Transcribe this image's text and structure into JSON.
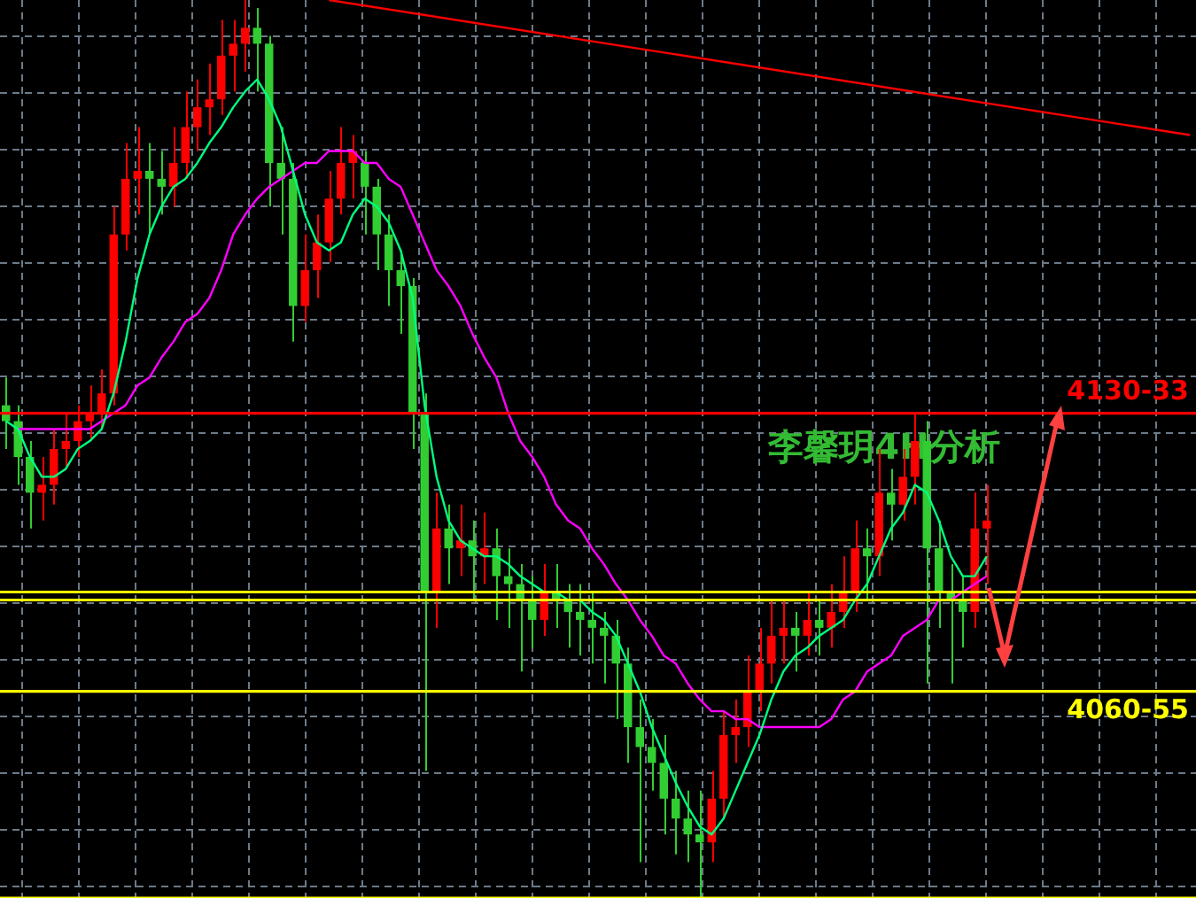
{
  "chart_data": {
    "type": "candlestick",
    "grid": true,
    "legend": false,
    "tick_labels": false,
    "ylim": [
      4008,
      4234
    ],
    "annotations": [
      "李馨玥4H分析"
    ],
    "categories": [
      null,
      null,
      null,
      null,
      null,
      null,
      null,
      null,
      null,
      null,
      null,
      null,
      null,
      null,
      null,
      null,
      null,
      null,
      null,
      null,
      null,
      null,
      null,
      null,
      null,
      null,
      null,
      null,
      null,
      null,
      null,
      null,
      null,
      null,
      null,
      null,
      null,
      null,
      null,
      null,
      null,
      null,
      null,
      null,
      null,
      null,
      null,
      null,
      null,
      null,
      null,
      null,
      null,
      null,
      null,
      null,
      null,
      null,
      null,
      null,
      null,
      null,
      null,
      null,
      null,
      null,
      null,
      null,
      null,
      null,
      null,
      null,
      null,
      null,
      null,
      null,
      null,
      null,
      null,
      null,
      null,
      null,
      null,
      null,
      null,
      null,
      null,
      null,
      null,
      null,
      null,
      null,
      null,
      null,
      null,
      null,
      null,
      null,
      null,
      null
    ],
    "ohlc": [
      [
        4132,
        4139,
        4121,
        4128
      ],
      [
        4128,
        4132,
        4112,
        4119
      ],
      [
        4119,
        4123,
        4101,
        4110
      ],
      [
        4110,
        4119,
        4103,
        4112
      ],
      [
        4112,
        4126,
        4107,
        4121
      ],
      [
        4121,
        4130,
        4116,
        4123
      ],
      [
        4123,
        4132,
        4119,
        4128
      ],
      [
        4128,
        4137,
        4123,
        4130
      ],
      [
        4130,
        4141,
        4126,
        4135
      ],
      [
        4135,
        4182,
        4132,
        4175
      ],
      [
        4175,
        4198,
        4171,
        4189
      ],
      [
        4189,
        4202,
        4180,
        4191
      ],
      [
        4191,
        4198,
        4175,
        4189
      ],
      [
        4189,
        4196,
        4180,
        4187
      ],
      [
        4187,
        4202,
        4182,
        4193
      ],
      [
        4193,
        4211,
        4189,
        4202
      ],
      [
        4202,
        4214,
        4196,
        4207
      ],
      [
        4207,
        4218,
        4200,
        4209
      ],
      [
        4209,
        4229,
        4205,
        4220
      ],
      [
        4220,
        4229,
        4211,
        4223
      ],
      [
        4223,
        4234,
        4216,
        4227
      ],
      [
        4227,
        4232,
        4211,
        4223
      ],
      [
        4223,
        4225,
        4182,
        4193
      ],
      [
        4193,
        4202,
        4175,
        4189
      ],
      [
        4189,
        4193,
        4148,
        4157
      ],
      [
        4157,
        4175,
        4153,
        4166
      ],
      [
        4166,
        4180,
        4159,
        4173
      ],
      [
        4173,
        4191,
        4168,
        4184
      ],
      [
        4184,
        4202,
        4180,
        4193
      ],
      [
        4193,
        4200,
        4184,
        4196
      ],
      [
        4193,
        4196,
        4175,
        4187
      ],
      [
        4187,
        4189,
        4166,
        4175
      ],
      [
        4175,
        4180,
        4157,
        4166
      ],
      [
        4166,
        4171,
        4150,
        4162
      ],
      [
        4162,
        4164,
        4121,
        4130
      ],
      [
        4130,
        4135,
        4040,
        4085
      ],
      [
        4085,
        4110,
        4076,
        4101
      ],
      [
        4101,
        4107,
        4087,
        4096
      ],
      [
        4096,
        4107,
        4089,
        4098
      ],
      [
        4098,
        4103,
        4083,
        4094
      ],
      [
        4094,
        4105,
        4087,
        4096
      ],
      [
        4096,
        4101,
        4078,
        4089
      ],
      [
        4089,
        4096,
        4076,
        4087
      ],
      [
        4087,
        4092,
        4065,
        4083
      ],
      [
        4083,
        4089,
        4071,
        4078
      ],
      [
        4078,
        4092,
        4074,
        4085
      ],
      [
        4085,
        4092,
        4076,
        4083
      ],
      [
        4083,
        4087,
        4071,
        4080
      ],
      [
        4080,
        4087,
        4069,
        4078
      ],
      [
        4078,
        4085,
        4067,
        4076
      ],
      [
        4076,
        4080,
        4062,
        4074
      ],
      [
        4074,
        4078,
        4053,
        4067
      ],
      [
        4067,
        4071,
        4042,
        4051
      ],
      [
        4051,
        4058,
        4017,
        4046
      ],
      [
        4046,
        4053,
        4035,
        4042
      ],
      [
        4042,
        4049,
        4024,
        4033
      ],
      [
        4033,
        4040,
        4019,
        4028
      ],
      [
        4028,
        4035,
        4017,
        4024
      ],
      [
        4024,
        4035,
        4008,
        4022
      ],
      [
        4022,
        4040,
        4017,
        4033
      ],
      [
        4033,
        4055,
        4028,
        4049
      ],
      [
        4049,
        4058,
        4042,
        4051
      ],
      [
        4051,
        4069,
        4046,
        4060
      ],
      [
        4060,
        4076,
        4055,
        4067
      ],
      [
        4067,
        4083,
        4062,
        4074
      ],
      [
        4074,
        4083,
        4067,
        4076
      ],
      [
        4076,
        4080,
        4065,
        4074
      ],
      [
        4074,
        4085,
        4069,
        4078
      ],
      [
        4078,
        4083,
        4069,
        4076
      ],
      [
        4076,
        4087,
        4071,
        4080
      ],
      [
        4080,
        4094,
        4076,
        4085
      ],
      [
        4085,
        4103,
        4080,
        4096
      ],
      [
        4096,
        4101,
        4083,
        4094
      ],
      [
        4094,
        4121,
        4089,
        4110
      ],
      [
        4110,
        4116,
        4098,
        4107
      ],
      [
        4107,
        4121,
        4103,
        4114
      ],
      [
        4114,
        4130,
        4107,
        4123
      ],
      [
        4123,
        4128,
        4062,
        4096
      ],
      [
        4096,
        4103,
        4076,
        4085
      ],
      [
        4085,
        4092,
        4062,
        4083
      ],
      [
        4083,
        4089,
        4071,
        4080
      ],
      [
        4080,
        4110,
        4076,
        4101
      ],
      [
        4101,
        4112,
        4087,
        4103
      ],
      null,
      null,
      null,
      null,
      null,
      null,
      null,
      null,
      null,
      null,
      null,
      null,
      null,
      null,
      null,
      null,
      null
    ],
    "colors": [
      "#32cd32",
      "#32cd32",
      "#32cd32",
      "#ff0000",
      "#ff0000",
      "#ff0000",
      "#ff0000",
      "#ff0000",
      "#ff0000",
      "#ff0000",
      "#ff0000",
      "#ff0000",
      "#32cd32",
      "#32cd32",
      "#ff0000",
      "#ff0000",
      "#ff0000",
      "#ff0000",
      "#ff0000",
      "#ff0000",
      "#ff0000",
      "#32cd32",
      "#32cd32",
      "#32cd32",
      "#32cd32",
      "#ff0000",
      "#ff0000",
      "#ff0000",
      "#ff0000",
      "#ff0000",
      "#32cd32",
      "#32cd32",
      "#32cd32",
      "#32cd32",
      "#32cd32",
      "#32cd32",
      "#ff0000",
      "#32cd32",
      "#ff0000",
      "#32cd32",
      "#ff0000",
      "#32cd32",
      "#32cd32",
      "#32cd32",
      "#32cd32",
      "#ff0000",
      "#32cd32",
      "#32cd32",
      "#32cd32",
      "#32cd32",
      "#32cd32",
      "#32cd32",
      "#32cd32",
      "#32cd32",
      "#32cd32",
      "#32cd32",
      "#32cd32",
      "#32cd32",
      "#32cd32",
      "#ff0000",
      "#ff0000",
      "#ff0000",
      "#ff0000",
      "#ff0000",
      "#ff0000",
      "#ff0000",
      "#32cd32",
      "#ff0000",
      "#32cd32",
      "#ff0000",
      "#ff0000",
      "#ff0000",
      "#32cd32",
      "#ff0000",
      "#32cd32",
      "#ff0000",
      "#ff0000",
      "#32cd32",
      "#32cd32",
      "#32cd32",
      "#32cd32",
      "#ff0000",
      "#ff0000",
      null,
      null,
      null,
      null,
      null,
      null,
      null,
      null,
      null,
      null,
      null,
      null,
      null,
      null,
      null,
      null,
      null
    ],
    "series": [
      {
        "type": "line",
        "color": "#00ff7f",
        "values": [
          4128,
          4126,
          4119,
          4114,
          4114,
          4116,
          4121,
          4123,
          4126,
          4135,
          4148,
          4164,
          4175,
          4182,
          4187,
          4189,
          4193,
          4198,
          4202,
          4207,
          4211,
          4214,
          4209,
          4202,
          4191,
          4180,
          4173,
          4171,
          4173,
          4180,
          4184,
          4182,
          4178,
          4171,
          4159,
          4132,
          4114,
          4103,
          4098,
          4096,
          4094,
          4094,
          4092,
          4089,
          4087,
          4085,
          4085,
          4083,
          4083,
          4080,
          4078,
          4074,
          4067,
          4060,
          4051,
          4044,
          4037,
          4031,
          4026,
          4024,
          4028,
          4035,
          4042,
          4049,
          4058,
          4065,
          4069,
          4071,
          4074,
          4076,
          4078,
          4083,
          4087,
          4094,
          4101,
          4105,
          4112,
          4110,
          4103,
          4094,
          4089,
          4089,
          4094,
          null,
          null,
          null,
          null,
          null,
          null,
          null,
          null,
          null,
          null,
          null,
          null,
          null,
          null,
          null,
          null,
          null
        ]
      },
      {
        "type": "line",
        "color": "#ff00ff",
        "values": [
          null,
          4126,
          4126,
          4126,
          4126,
          4126,
          4126,
          4126,
          4128,
          4130,
          4132,
          4137,
          4139,
          4144,
          4148,
          4153,
          4155,
          4159,
          4166,
          4175,
          4180,
          4184,
          4187,
          4189,
          4191,
          4193,
          4193,
          4196,
          4196,
          4196,
          4193,
          4193,
          4189,
          4187,
          4180,
          4173,
          4166,
          4162,
          4157,
          4150,
          4144,
          4139,
          4130,
          4123,
          4119,
          4114,
          4107,
          4103,
          4101,
          4096,
          4092,
          4087,
          4083,
          4078,
          4074,
          4069,
          4067,
          4062,
          4058,
          4055,
          4055,
          4053,
          4053,
          4051,
          4051,
          4051,
          4051,
          4051,
          4051,
          4053,
          4058,
          4060,
          4065,
          4067,
          4069,
          4074,
          4076,
          4078,
          4083,
          4083,
          4085,
          4087,
          4089,
          null,
          null,
          null,
          null,
          null,
          null,
          null,
          null,
          null,
          null,
          null,
          null,
          null,
          null,
          null,
          null,
          null
        ]
      },
      {
        "type": "line",
        "color": "#ff0000",
        "values": [
          null,
          null,
          null,
          null,
          null,
          null,
          null,
          null,
          null,
          null,
          null,
          null,
          null,
          null,
          null,
          null,
          null,
          null,
          null,
          null,
          null,
          null,
          null,
          null,
          null,
          null,
          null,
          4234,
          null,
          null,
          null,
          null,
          null,
          null,
          null,
          null,
          null,
          null,
          null,
          null,
          null,
          null,
          null,
          null,
          null,
          null,
          null,
          null,
          null,
          null,
          null,
          null,
          null,
          null,
          null,
          null,
          null,
          null,
          null,
          null,
          null,
          null,
          null,
          null,
          null,
          null,
          null,
          null,
          null,
          null,
          null,
          null,
          null,
          null,
          null,
          null,
          null,
          null,
          null,
          null,
          null,
          null,
          null,
          null,
          null,
          null,
          null,
          null,
          null,
          null,
          null,
          null,
          null,
          null,
          null,
          null,
          null,
          null,
          null,
          4200
        ]
      }
    ],
    "ref_lines": [
      {
        "axis": "y",
        "value": 4130,
        "label": "4130-33",
        "color": "#ff0000"
      },
      {
        "axis": "y",
        "value": 4085,
        "color": "#ffff00"
      },
      {
        "axis": "y",
        "value": 4083,
        "color": "#ffff00"
      },
      {
        "axis": "y",
        "value": 4060,
        "label": "4060-55",
        "color": "#ffff00"
      },
      {
        "axis": "y",
        "value": 4008,
        "color": "#ffff00"
      }
    ]
  }
}
